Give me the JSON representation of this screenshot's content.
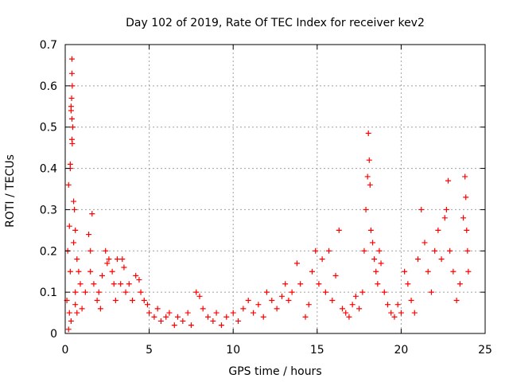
{
  "chart_data": {
    "type": "scatter",
    "title": "Day 102 of 2019, Rate Of TEC Index for receiver kev2",
    "xlabel": "GPS time / hours",
    "ylabel": "ROTI / TECUs",
    "xlim": [
      0,
      25
    ],
    "ylim": [
      0,
      0.7
    ],
    "x_ticks": [
      0,
      5,
      10,
      15,
      20,
      25
    ],
    "y_ticks": [
      0,
      0.1,
      0.2,
      0.3,
      0.4,
      0.5,
      0.6,
      0.7
    ],
    "x_tick_labels": [
      "0",
      "5",
      "10",
      "15",
      "20",
      "25"
    ],
    "y_tick_labels": [
      "0",
      "0.1",
      "0.2",
      "0.3",
      "0.4",
      "0.5",
      "0.6",
      "0.7"
    ],
    "grid": true,
    "marker": "+",
    "color": "#ff0000",
    "series": [
      {
        "name": "ROTI",
        "points": [
          [
            0.1,
            0.08
          ],
          [
            0.15,
            0.2
          ],
          [
            0.2,
            0.36
          ],
          [
            0.25,
            0.26
          ],
          [
            0.3,
            0.41
          ],
          [
            0.35,
            0.55
          ],
          [
            0.4,
            0.665
          ],
          [
            0.4,
            0.63
          ],
          [
            0.42,
            0.6
          ],
          [
            0.38,
            0.57
          ],
          [
            0.4,
            0.52
          ],
          [
            0.45,
            0.5
          ],
          [
            0.4,
            0.47
          ],
          [
            0.42,
            0.46
          ],
          [
            0.35,
            0.54
          ],
          [
            0.3,
            0.4
          ],
          [
            0.5,
            0.32
          ],
          [
            0.55,
            0.3
          ],
          [
            0.6,
            0.25
          ],
          [
            0.5,
            0.22
          ],
          [
            0.7,
            0.18
          ],
          [
            0.8,
            0.15
          ],
          [
            0.9,
            0.12
          ],
          [
            0.3,
            0.15
          ],
          [
            0.25,
            0.05
          ],
          [
            0.6,
            0.07
          ],
          [
            0.2,
            0.01
          ],
          [
            0.35,
            0.03
          ],
          [
            0.6,
            0.1
          ],
          [
            0.7,
            0.05
          ],
          [
            1.0,
            0.06
          ],
          [
            1.2,
            0.1
          ],
          [
            1.4,
            0.24
          ],
          [
            1.5,
            0.2
          ],
          [
            1.6,
            0.29
          ],
          [
            1.5,
            0.15
          ],
          [
            1.7,
            0.12
          ],
          [
            1.9,
            0.08
          ],
          [
            2.0,
            0.1
          ],
          [
            2.1,
            0.06
          ],
          [
            2.2,
            0.14
          ],
          [
            2.4,
            0.2
          ],
          [
            2.5,
            0.17
          ],
          [
            2.6,
            0.18
          ],
          [
            2.8,
            0.15
          ],
          [
            2.9,
            0.12
          ],
          [
            3.0,
            0.08
          ],
          [
            3.1,
            0.18
          ],
          [
            3.3,
            0.12
          ],
          [
            3.4,
            0.18
          ],
          [
            3.5,
            0.16
          ],
          [
            3.6,
            0.1
          ],
          [
            3.8,
            0.12
          ],
          [
            4.0,
            0.08
          ],
          [
            4.2,
            0.14
          ],
          [
            4.4,
            0.13
          ],
          [
            4.5,
            0.1
          ],
          [
            4.7,
            0.08
          ],
          [
            4.9,
            0.07
          ],
          [
            5.0,
            0.05
          ],
          [
            5.3,
            0.04
          ],
          [
            5.5,
            0.06
          ],
          [
            5.7,
            0.03
          ],
          [
            6.0,
            0.04
          ],
          [
            6.2,
            0.05
          ],
          [
            6.5,
            0.02
          ],
          [
            6.7,
            0.04
          ],
          [
            7.0,
            0.03
          ],
          [
            7.3,
            0.05
          ],
          [
            7.5,
            0.02
          ],
          [
            7.8,
            0.1
          ],
          [
            8.0,
            0.09
          ],
          [
            8.2,
            0.06
          ],
          [
            8.5,
            0.04
          ],
          [
            8.8,
            0.03
          ],
          [
            9.0,
            0.05
          ],
          [
            9.3,
            0.02
          ],
          [
            9.6,
            0.04
          ],
          [
            10.0,
            0.05
          ],
          [
            10.3,
            0.03
          ],
          [
            10.6,
            0.06
          ],
          [
            10.9,
            0.08
          ],
          [
            11.2,
            0.05
          ],
          [
            11.5,
            0.07
          ],
          [
            11.8,
            0.04
          ],
          [
            12.0,
            0.1
          ],
          [
            12.3,
            0.08
          ],
          [
            12.6,
            0.06
          ],
          [
            12.9,
            0.09
          ],
          [
            13.1,
            0.12
          ],
          [
            13.3,
            0.08
          ],
          [
            13.5,
            0.1
          ],
          [
            13.8,
            0.17
          ],
          [
            14.0,
            0.12
          ],
          [
            14.3,
            0.04
          ],
          [
            14.5,
            0.07
          ],
          [
            14.7,
            0.15
          ],
          [
            14.9,
            0.2
          ],
          [
            15.1,
            0.12
          ],
          [
            15.3,
            0.18
          ],
          [
            15.5,
            0.1
          ],
          [
            15.7,
            0.2
          ],
          [
            15.9,
            0.08
          ],
          [
            16.1,
            0.14
          ],
          [
            16.3,
            0.25
          ],
          [
            16.5,
            0.06
          ],
          [
            16.7,
            0.05
          ],
          [
            16.9,
            0.04
          ],
          [
            17.1,
            0.07
          ],
          [
            17.3,
            0.09
          ],
          [
            17.5,
            0.06
          ],
          [
            17.7,
            0.1
          ],
          [
            17.8,
            0.2
          ],
          [
            17.9,
            0.3
          ],
          [
            18.0,
            0.38
          ],
          [
            18.05,
            0.485
          ],
          [
            18.1,
            0.42
          ],
          [
            18.15,
            0.36
          ],
          [
            18.2,
            0.25
          ],
          [
            18.3,
            0.22
          ],
          [
            18.4,
            0.18
          ],
          [
            18.5,
            0.15
          ],
          [
            18.6,
            0.12
          ],
          [
            18.7,
            0.2
          ],
          [
            18.8,
            0.17
          ],
          [
            19.0,
            0.1
          ],
          [
            19.2,
            0.07
          ],
          [
            19.4,
            0.05
          ],
          [
            19.6,
            0.04
          ],
          [
            19.8,
            0.07
          ],
          [
            20.0,
            0.05
          ],
          [
            20.2,
            0.15
          ],
          [
            20.4,
            0.12
          ],
          [
            20.6,
            0.08
          ],
          [
            20.8,
            0.05
          ],
          [
            21.0,
            0.18
          ],
          [
            21.2,
            0.3
          ],
          [
            21.4,
            0.22
          ],
          [
            21.6,
            0.15
          ],
          [
            21.8,
            0.1
          ],
          [
            22.0,
            0.2
          ],
          [
            22.2,
            0.25
          ],
          [
            22.4,
            0.18
          ],
          [
            22.6,
            0.28
          ],
          [
            22.7,
            0.3
          ],
          [
            22.8,
            0.37
          ],
          [
            22.9,
            0.2
          ],
          [
            23.1,
            0.15
          ],
          [
            23.3,
            0.08
          ],
          [
            23.5,
            0.12
          ],
          [
            23.7,
            0.28
          ],
          [
            23.8,
            0.38
          ],
          [
            23.85,
            0.33
          ],
          [
            23.9,
            0.25
          ],
          [
            23.95,
            0.2
          ],
          [
            24.0,
            0.15
          ]
        ]
      }
    ]
  }
}
